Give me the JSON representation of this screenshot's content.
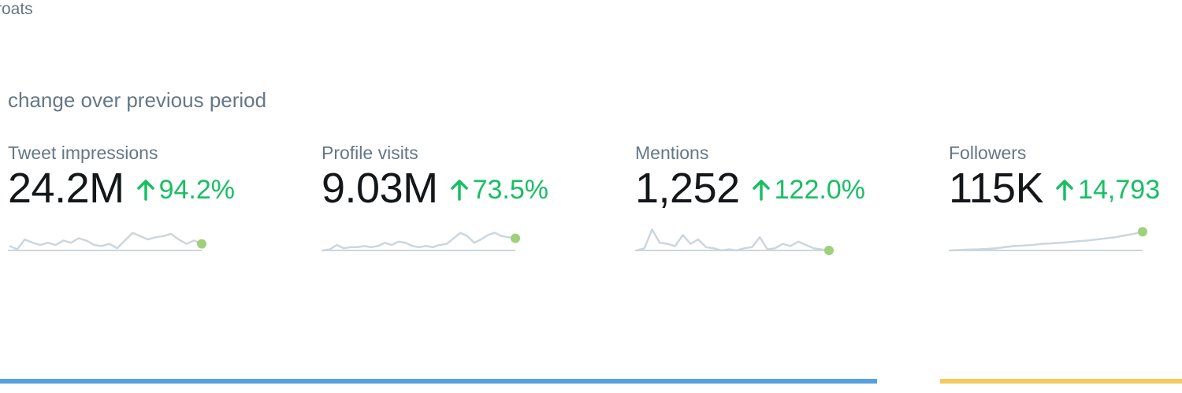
{
  "header": {
    "cut_text": "roats"
  },
  "section": {
    "title": "change over previous period"
  },
  "metrics": [
    {
      "label": "Tweet impressions",
      "value": "24.2M",
      "change": "94.2%",
      "trend": [
        0.2,
        0.05,
        0.5,
        0.35,
        0.25,
        0.35,
        0.25,
        0.45,
        0.35,
        0.55,
        0.45,
        0.25,
        0.2,
        0.3,
        0.1,
        0.45,
        0.8,
        0.65,
        0.5,
        0.6,
        0.65,
        0.75,
        0.5,
        0.3,
        0.45,
        0.3
      ]
    },
    {
      "label": "Profile visits",
      "value": "9.03M",
      "change": "73.5%",
      "trend": [
        0.0,
        0.05,
        0.25,
        0.1,
        0.15,
        0.15,
        0.2,
        0.15,
        0.2,
        0.35,
        0.25,
        0.4,
        0.35,
        0.2,
        0.15,
        0.2,
        0.15,
        0.25,
        0.3,
        0.55,
        0.8,
        0.65,
        0.35,
        0.5,
        0.7,
        0.8,
        0.65,
        0.6,
        0.55
      ]
    },
    {
      "label": "Mentions",
      "value": "1,252",
      "change": "122.0%",
      "trend": [
        0.0,
        0.1,
        0.95,
        0.35,
        0.3,
        0.2,
        0.7,
        0.3,
        0.5,
        0.15,
        0.1,
        0.0,
        0.05,
        0.0,
        0.1,
        0.15,
        0.6,
        0.05,
        0.1,
        0.3,
        0.2,
        0.4,
        0.25,
        0.1,
        0.05,
        0.0
      ]
    },
    {
      "label": "Followers",
      "value": "115K",
      "change": "14,793",
      "trend": [
        0.0,
        0.02,
        0.04,
        0.05,
        0.07,
        0.1,
        0.15,
        0.2,
        0.22,
        0.25,
        0.3,
        0.32,
        0.35,
        0.38,
        0.42,
        0.45,
        0.5,
        0.55,
        0.6,
        0.68,
        0.75,
        0.85
      ]
    }
  ],
  "colors": {
    "positive": "#17bf63",
    "sparkline": "#ccd6dd",
    "endpoint": "#9fd07a",
    "bar_blue": "#55a0e0",
    "bar_yellow": "#f5cb5c"
  }
}
